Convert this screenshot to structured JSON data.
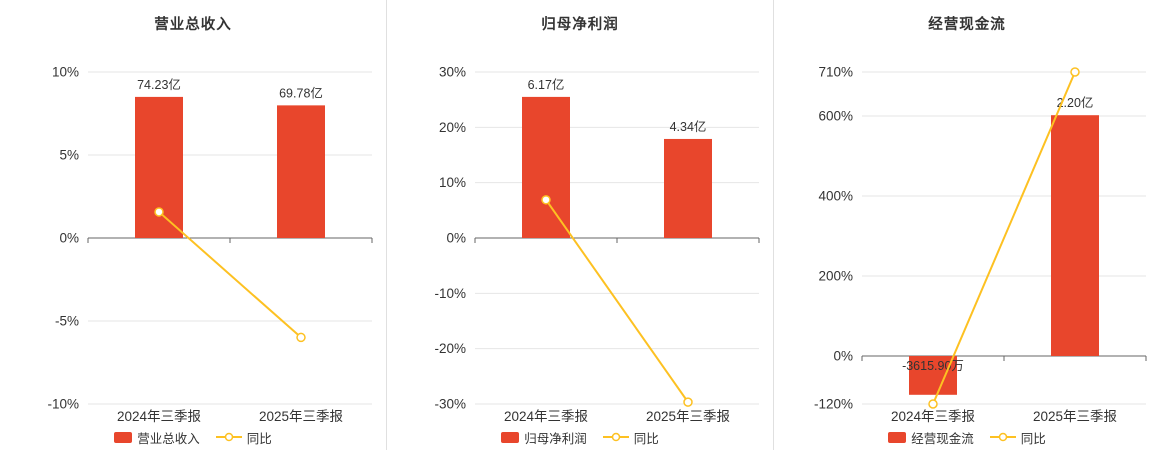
{
  "colors": {
    "bar": "#e8462c",
    "line": "#fdc122",
    "grid": "#e6e6e6",
    "zero_axis": "#666666",
    "text": "#333333",
    "panel_divider": "#e0e0e0",
    "marker_fill": "#ffffff"
  },
  "chart_data": [
    {
      "type": "bar+line",
      "title": "营业总收入",
      "categories": [
        "2024年三季报",
        "2025年三季报"
      ],
      "bar_series": {
        "name": "营业总收入",
        "value_labels": [
          "74.23亿",
          "69.78亿"
        ],
        "plot_values_on_pct_axis": [
          8.5,
          7.99
        ]
      },
      "line_series": {
        "name": "同比",
        "values_pct": [
          1.57,
          -5.99
        ]
      },
      "ylim": [
        -10,
        10
      ],
      "yticks": [
        10,
        5,
        0,
        -5,
        -10
      ],
      "ytick_labels": [
        "10%",
        "5%",
        "0%",
        "-5%",
        "-10%"
      ],
      "grid": true,
      "legend_position": "bottom"
    },
    {
      "type": "bar+line",
      "title": "归母净利润",
      "categories": [
        "2024年三季报",
        "2025年三季报"
      ],
      "bar_series": {
        "name": "归母净利润",
        "value_labels": [
          "6.17亿",
          "4.34亿"
        ],
        "plot_values_on_pct_axis": [
          25.5,
          17.9
        ]
      },
      "line_series": {
        "name": "同比",
        "values_pct": [
          6.9,
          -29.66
        ]
      },
      "ylim": [
        -30,
        30
      ],
      "yticks": [
        30,
        20,
        10,
        0,
        -10,
        -20,
        -30
      ],
      "ytick_labels": [
        "30%",
        "20%",
        "10%",
        "0%",
        "-10%",
        "-20%",
        "-30%"
      ],
      "grid": true,
      "legend_position": "bottom"
    },
    {
      "type": "bar+line",
      "title": "经营现金流",
      "categories": [
        "2024年三季报",
        "2025年三季报"
      ],
      "bar_series": {
        "name": "经营现金流",
        "value_labels": [
          "-3615.90万",
          "2.20亿"
        ],
        "plot_values_on_pct_axis": [
          -97,
          602
        ]
      },
      "line_series": {
        "name": "同比",
        "values_pct": [
          -120,
          710
        ]
      },
      "ylim": [
        -120,
        710
      ],
      "yticks": [
        710,
        600,
        400,
        200,
        0,
        -120
      ],
      "ytick_labels": [
        "710%",
        "600%",
        "400%",
        "200%",
        "0%",
        "-120%"
      ],
      "grid": true,
      "legend_position": "bottom"
    }
  ]
}
